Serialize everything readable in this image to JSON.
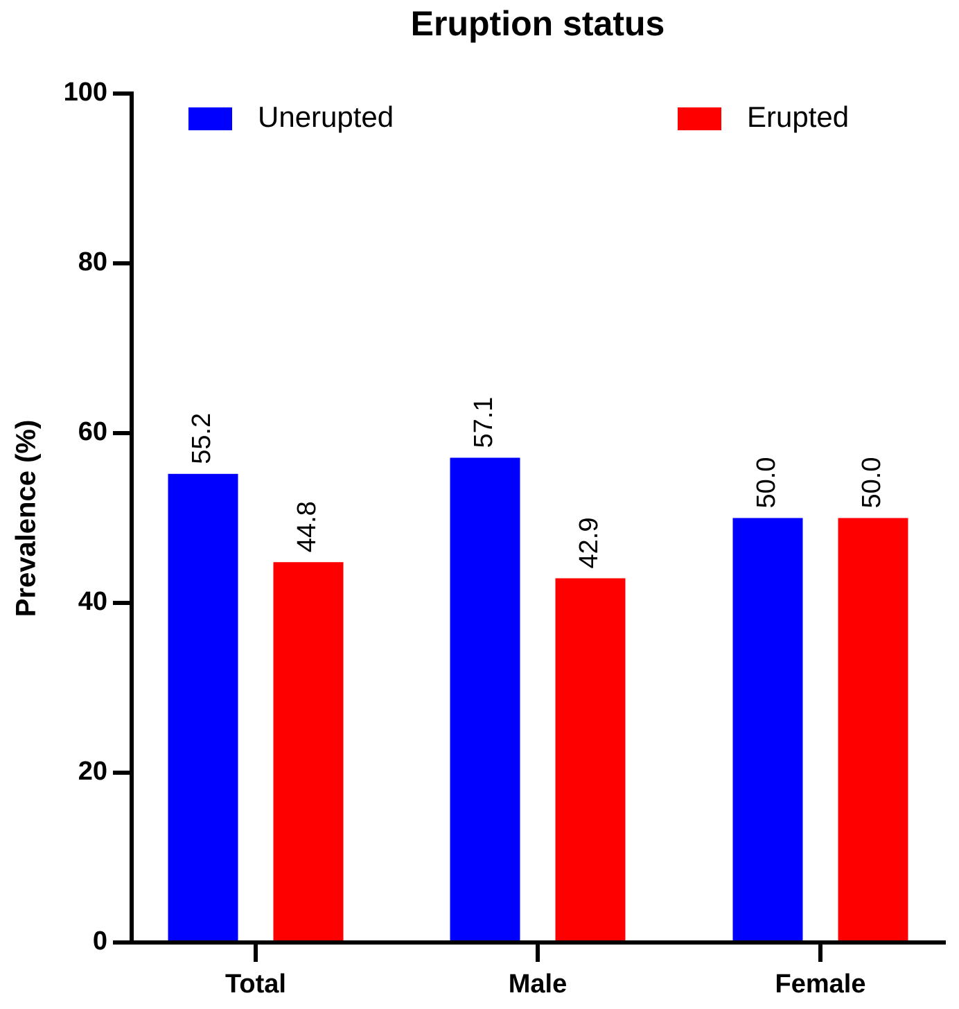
{
  "chart_data": {
    "type": "bar",
    "title": "Eruption status",
    "y_label": "Prevalence (%)",
    "categories": [
      "Total",
      "Male",
      "Female"
    ],
    "series": [
      {
        "name": "Unerupted",
        "color": "#0000ff",
        "values": [
          55.2,
          57.1,
          50.0
        ],
        "value_labels": [
          "55.2",
          "57.1",
          "50.0"
        ]
      },
      {
        "name": "Erupted",
        "color": "#ff0000",
        "values": [
          44.8,
          42.9,
          50.0
        ],
        "value_labels": [
          "44.8",
          "42.9",
          "50.0"
        ]
      }
    ],
    "ylim": [
      0,
      100
    ],
    "yticks": [
      0,
      20,
      40,
      60,
      80,
      100
    ],
    "grid": false,
    "legend": "top"
  }
}
